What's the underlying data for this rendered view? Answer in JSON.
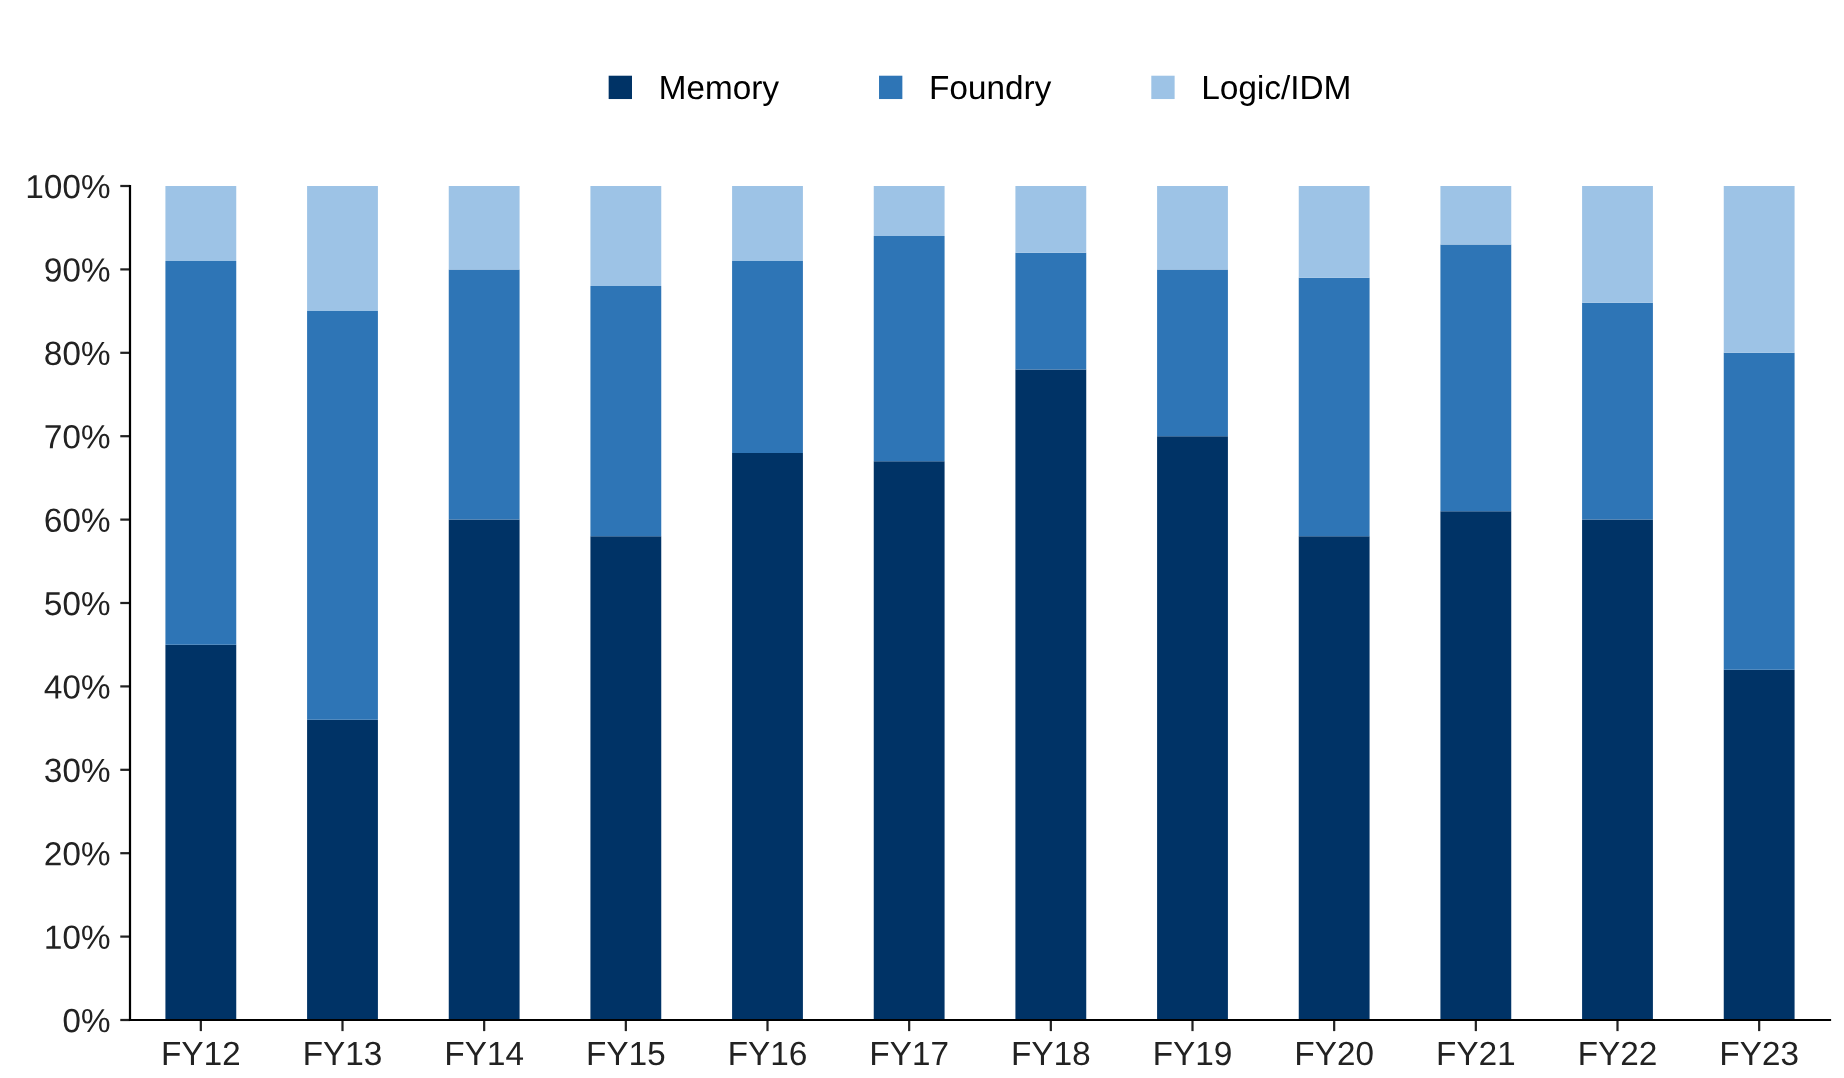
{
  "chart_data": {
    "type": "bar",
    "stacked": true,
    "categories": [
      "FY12",
      "FY13",
      "FY14",
      "FY15",
      "FY16",
      "FY17",
      "FY18",
      "FY19",
      "FY20",
      "FY21",
      "FY22",
      "FY23"
    ],
    "series": [
      {
        "name": "Memory",
        "color": "#003366",
        "values": [
          45,
          36,
          60,
          58,
          68,
          67,
          78,
          70,
          58,
          61,
          60,
          42
        ]
      },
      {
        "name": "Foundry",
        "color": "#2e75b6",
        "values": [
          46,
          49,
          30,
          30,
          23,
          27,
          14,
          20,
          31,
          32,
          26,
          38
        ]
      },
      {
        "name": "Logic/IDM",
        "color": "#9dc3e6",
        "values": [
          9,
          15,
          10,
          12,
          9,
          6,
          8,
          10,
          11,
          7,
          14,
          20
        ]
      }
    ],
    "ylim": [
      0,
      100
    ],
    "yticks": [
      {
        "value": 0,
        "label": "0%"
      },
      {
        "value": 10,
        "label": "10%"
      },
      {
        "value": 20,
        "label": "20%"
      },
      {
        "value": 30,
        "label": "30%"
      },
      {
        "value": 40,
        "label": "40%"
      },
      {
        "value": 50,
        "label": "50%"
      },
      {
        "value": 60,
        "label": "60%"
      },
      {
        "value": 70,
        "label": "70%"
      },
      {
        "value": 80,
        "label": "80%"
      },
      {
        "value": 90,
        "label": "90%"
      },
      {
        "value": 100,
        "label": "100%"
      }
    ],
    "grid": false,
    "legend": "top"
  }
}
